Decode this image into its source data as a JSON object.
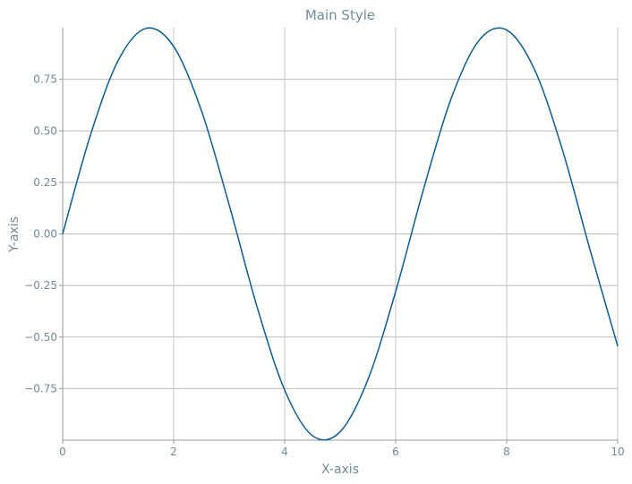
{
  "chart_data": {
    "type": "line",
    "title": "Main Style",
    "xlabel": "X-axis",
    "ylabel": "Y-axis",
    "xlim": [
      0,
      10
    ],
    "ylim": [
      -1.0,
      1.0
    ],
    "xticks": [
      0,
      2,
      4,
      6,
      8,
      10
    ],
    "xtick_labels": [
      "0",
      "2",
      "4",
      "6",
      "8",
      "10"
    ],
    "yticks": [
      -0.75,
      -0.5,
      -0.25,
      0.0,
      0.25,
      0.5,
      0.75
    ],
    "ytick_labels": [
      "−0.75",
      "−0.50",
      "−0.25",
      "0.00",
      "0.25",
      "0.50",
      "0.75"
    ],
    "grid": true,
    "series": [
      {
        "function": "sin(x)",
        "x": [
          0.0,
          0.5,
          1.0,
          1.5,
          2.0,
          2.5,
          3.0,
          3.5,
          4.0,
          4.5,
          5.0,
          5.5,
          6.0,
          6.5,
          7.0,
          7.5,
          8.0,
          8.5,
          9.0,
          9.5,
          10.0
        ],
        "values": [
          0.0,
          0.479,
          0.841,
          0.997,
          0.909,
          0.598,
          0.141,
          -0.351,
          -0.757,
          -0.978,
          -0.959,
          -0.706,
          -0.279,
          0.215,
          0.657,
          0.938,
          0.989,
          0.798,
          0.412,
          -0.075,
          -0.544
        ]
      }
    ],
    "colors": {
      "line": "#0b5c99",
      "grid": "#bcbcbc",
      "text": "#708a9c"
    }
  }
}
